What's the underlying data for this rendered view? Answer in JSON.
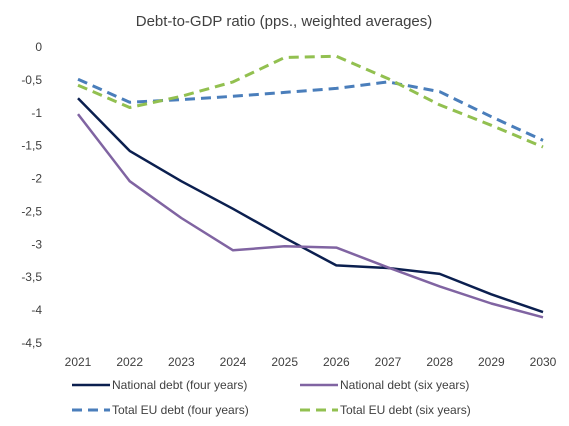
{
  "chart_data": {
    "type": "line",
    "title": "Debt-to-GDP ratio (pps., weighted averages)",
    "xlabel": "",
    "ylabel": "",
    "x": [
      "2021",
      "2022",
      "2023",
      "2024",
      "2025",
      "2026",
      "2027",
      "2028",
      "2029",
      "2030"
    ],
    "ylim": [
      -4.5,
      0
    ],
    "yticks": [
      0,
      -0.5,
      -1,
      -1.5,
      -2,
      -2.5,
      -3,
      -3.5,
      -4,
      -4.5
    ],
    "ytick_labels": [
      "0",
      "-0,5",
      "-1",
      "-1,5",
      "-2",
      "-2,5",
      "-3",
      "-3,5",
      "-4",
      "-4,5"
    ],
    "grid": false,
    "legend_position": "bottom",
    "series": [
      {
        "name": "National debt (four years)",
        "color": "#0b1f4f",
        "style": "solid",
        "values": [
          -0.78,
          -1.58,
          -2.04,
          -2.46,
          -2.9,
          -3.32,
          -3.36,
          -3.45,
          -3.76,
          -4.03
        ]
      },
      {
        "name": "National debt (six years)",
        "color": "#8064a2",
        "style": "solid",
        "values": [
          -1.02,
          -2.04,
          -2.6,
          -3.09,
          -3.03,
          -3.05,
          -3.35,
          -3.64,
          -3.9,
          -4.11
        ]
      },
      {
        "name": "Total EU debt (four years)",
        "color": "#4a7ebb",
        "style": "dashed",
        "values": [
          -0.49,
          -0.84,
          -0.8,
          -0.75,
          -0.69,
          -0.63,
          -0.53,
          -0.68,
          -1.06,
          -1.42
        ]
      },
      {
        "name": "Total EU debt (six years)",
        "color": "#92c050",
        "style": "dashed",
        "values": [
          -0.58,
          -0.92,
          -0.75,
          -0.53,
          -0.16,
          -0.14,
          -0.48,
          -0.88,
          -1.19,
          -1.52
        ]
      }
    ]
  }
}
